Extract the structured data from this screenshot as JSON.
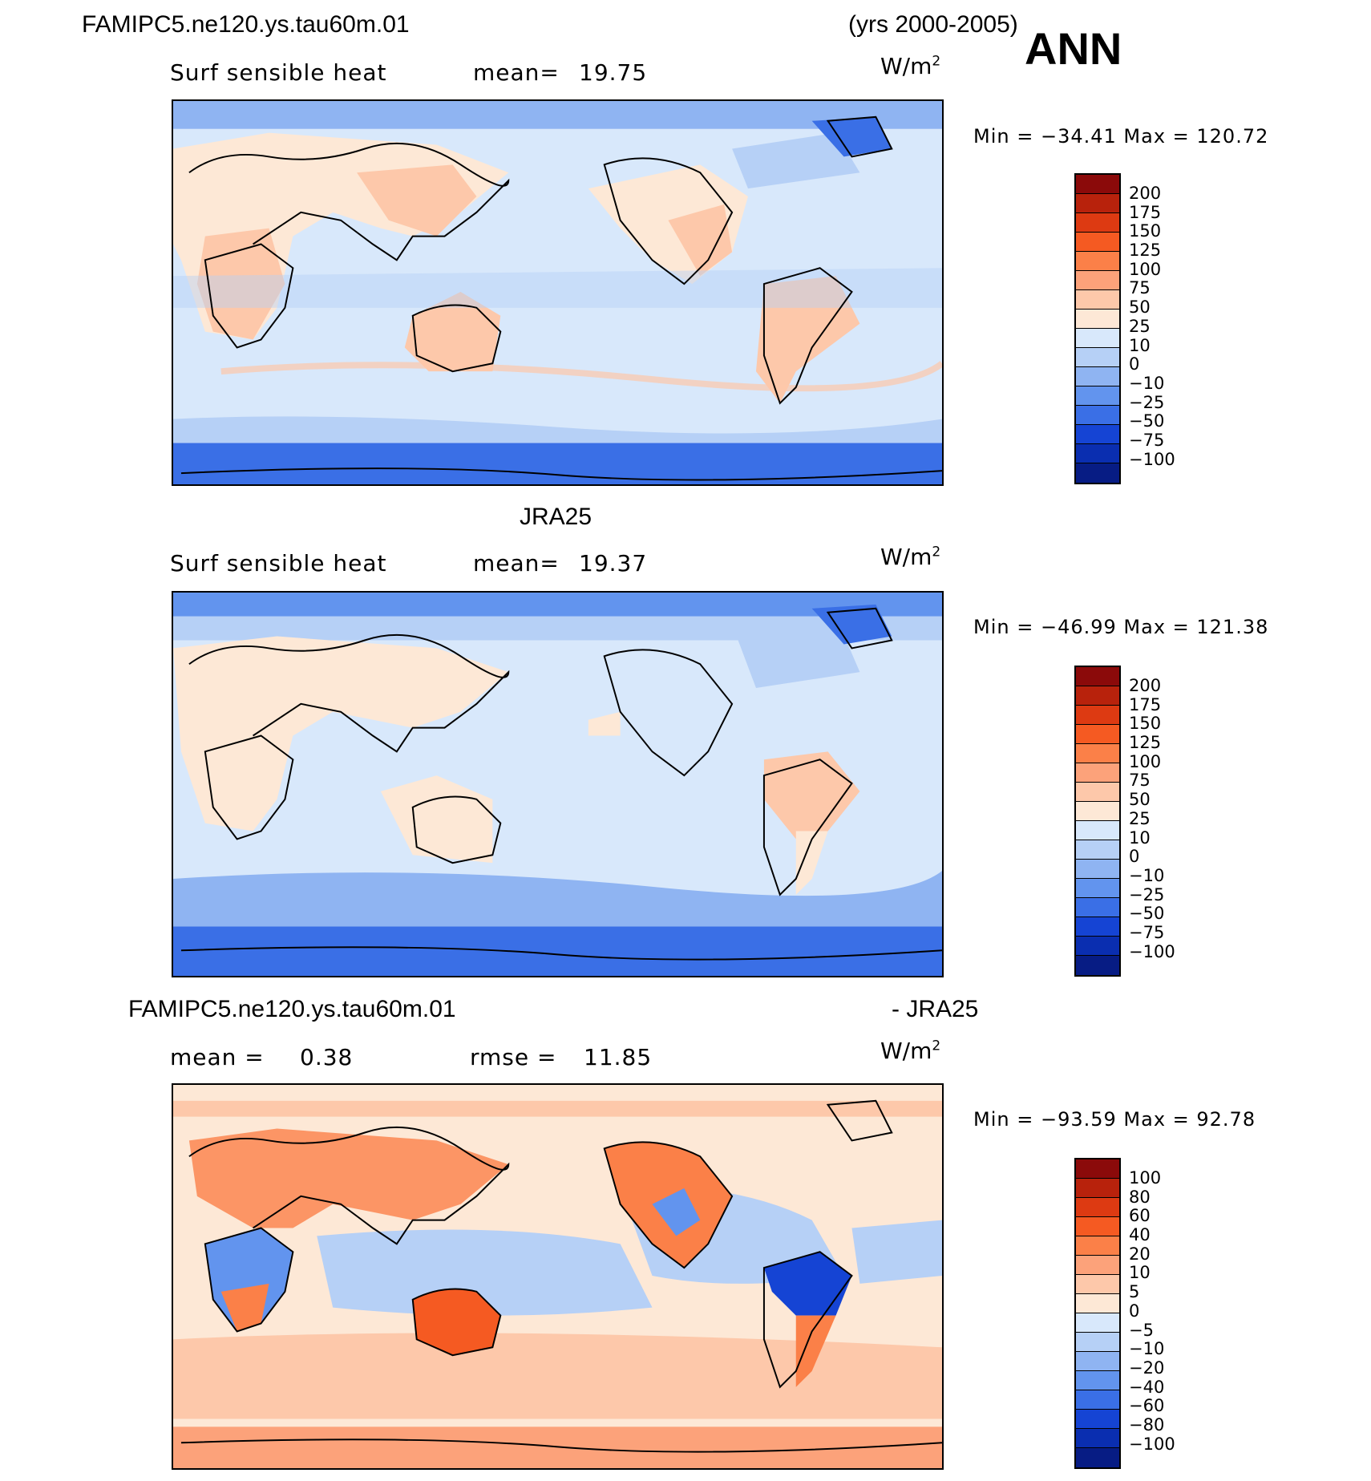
{
  "header": {
    "case_name": "FAMIPC5.ne120.ys.tau60m.01",
    "years": "(yrs 2000-2005)",
    "season": "ANN"
  },
  "panels": [
    {
      "variable": "Surf  sensible  heat",
      "mean_label": "mean=",
      "mean_value": "19.75",
      "units_base": "W/m",
      "units_exp": "2",
      "minmax": "Min  =  −34.41  Max  =  120.72",
      "legend_levels": [
        "200",
        "175",
        "150",
        "125",
        "100",
        "75",
        "50",
        "25",
        "10",
        "0",
        "−10",
        "−25",
        "−50",
        "−75",
        "−100"
      ],
      "legend_colors": [
        "#8b0a0a",
        "#b8220c",
        "#dd3a12",
        "#f55a22",
        "#fb8048",
        "#fca27a",
        "#fdc8aa",
        "#fde8d6",
        "#d8e8fb",
        "#b6d0f6",
        "#8fb4f2",
        "#6294ee",
        "#3a6fe6",
        "#1544d4",
        "#0a2eb0",
        "#071c84"
      ]
    },
    {
      "title": "JRA25",
      "variable": "Surf  sensible  heat",
      "mean_label": "mean=",
      "mean_value": "19.37",
      "units_base": "W/m",
      "units_exp": "2",
      "minmax": "Min  =  −46.99  Max  =  121.38",
      "legend_levels": [
        "200",
        "175",
        "150",
        "125",
        "100",
        "75",
        "50",
        "25",
        "10",
        "0",
        "−10",
        "−25",
        "−50",
        "−75",
        "−100"
      ],
      "legend_colors": [
        "#8b0a0a",
        "#b8220c",
        "#dd3a12",
        "#f55a22",
        "#fb8048",
        "#fca27a",
        "#fdc8aa",
        "#fde8d6",
        "#d8e8fb",
        "#b6d0f6",
        "#8fb4f2",
        "#6294ee",
        "#3a6fe6",
        "#1544d4",
        "#0a2eb0",
        "#071c84"
      ]
    },
    {
      "title_left": "FAMIPC5.ne120.ys.tau60m.01",
      "title_right": "- JRA25",
      "mean_label": "mean  =",
      "mean_value": "0.38",
      "rmse_label": "rmse  =",
      "rmse_value": "11.85",
      "units_base": "W/m",
      "units_exp": "2",
      "minmax": "Min  =  −93.59  Max  =    92.78",
      "legend_levels": [
        "100",
        "80",
        "60",
        "40",
        "20",
        "10",
        "5",
        "0",
        "−5",
        "−10",
        "−20",
        "−40",
        "−60",
        "−80",
        "−100"
      ],
      "legend_colors": [
        "#8b0a0a",
        "#b8220c",
        "#dd3a12",
        "#f55a22",
        "#fb8048",
        "#fca27a",
        "#fdc8aa",
        "#fde8d6",
        "#d8e8fb",
        "#b6d0f6",
        "#8fb4f2",
        "#6294ee",
        "#3a6fe6",
        "#1544d4",
        "#0a2eb0",
        "#071c84"
      ]
    }
  ]
}
